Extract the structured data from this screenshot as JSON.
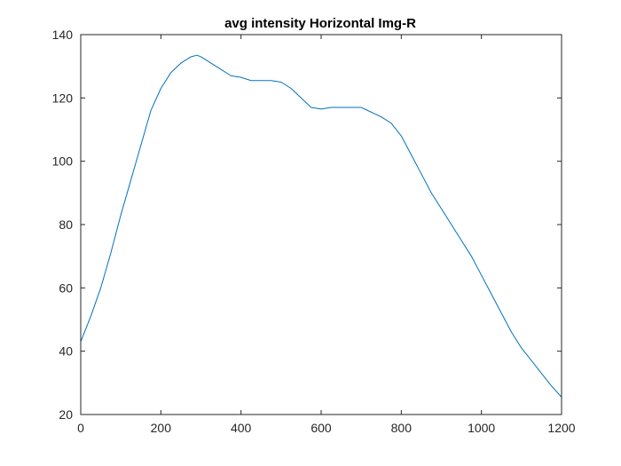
{
  "chart_data": {
    "type": "line",
    "title": "avg intensity Horizontal Img-R",
    "xlabel": "",
    "ylabel": "",
    "xlim": [
      0,
      1200
    ],
    "ylim": [
      20,
      140
    ],
    "x_ticks": [
      0,
      200,
      400,
      600,
      800,
      1000,
      1200
    ],
    "y_ticks": [
      20,
      40,
      60,
      80,
      100,
      120,
      140
    ],
    "grid": false,
    "legend": "none",
    "line_color": "#0072BD",
    "series": [
      {
        "x": [
          0,
          25,
          50,
          75,
          100,
          125,
          150,
          175,
          200,
          225,
          250,
          275,
          290,
          300,
          325,
          350,
          375,
          400,
          425,
          450,
          475,
          500,
          525,
          550,
          575,
          600,
          625,
          650,
          675,
          700,
          725,
          750,
          775,
          800,
          825,
          850,
          875,
          900,
          925,
          950,
          975,
          1000,
          1025,
          1050,
          1075,
          1100,
          1125,
          1150,
          1175,
          1200
        ],
        "y": [
          43,
          51,
          60,
          71,
          83,
          94,
          105,
          116,
          123,
          128,
          131,
          133,
          133.5,
          133,
          131,
          129,
          127,
          126.5,
          125.5,
          125.5,
          125.5,
          125,
          123,
          120,
          117,
          116.5,
          117,
          117,
          117,
          117,
          115.5,
          114,
          112,
          108,
          102,
          96,
          90,
          85,
          80,
          75,
          70,
          64,
          58,
          52,
          46,
          41,
          37,
          33,
          29,
          25.5
        ]
      }
    ]
  }
}
